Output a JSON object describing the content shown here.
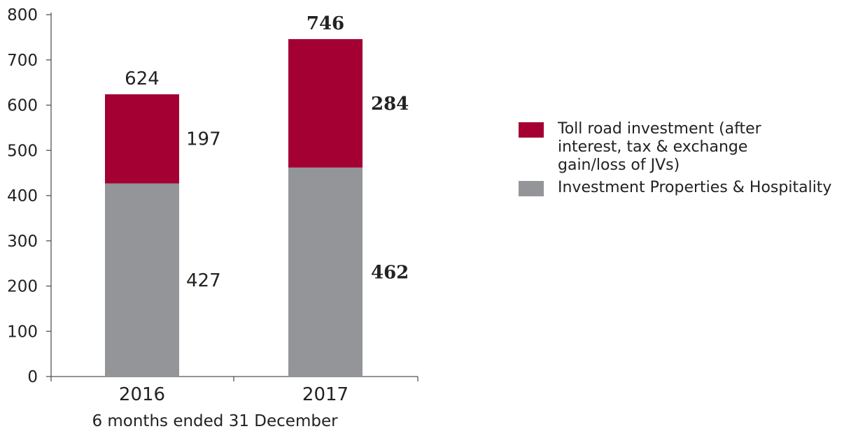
{
  "chart_data": {
    "type": "bar",
    "stacked": true,
    "categories": [
      "2016",
      "2017"
    ],
    "series": [
      {
        "name": "Investment Properties & Hospitality",
        "color": "#939598",
        "values": [
          427,
          462
        ],
        "labels": [
          "427",
          "462"
        ]
      },
      {
        "name": "Toll road investment (after interest, tax & exchange gain/loss of JVs)",
        "color": "#a50034",
        "values": [
          197,
          284
        ],
        "labels": [
          "197",
          "284"
        ]
      }
    ],
    "totals": [
      624,
      746
    ],
    "total_labels": [
      "624",
      "746"
    ],
    "bold_category": "2017",
    "xlabel": "6 months ended 31 December",
    "ylabel": "",
    "ylim": [
      0,
      800
    ],
    "yticks": [
      "0",
      "100",
      "200",
      "300",
      "400",
      "500",
      "600",
      "700",
      "800"
    ],
    "grid": false,
    "legend_position": "right"
  },
  "legend": {
    "items": [
      {
        "label": "Toll road investment (after interest, tax & exchange gain/loss of JVs)",
        "color": "#a50034"
      },
      {
        "label": "Investment Properties & Hospitality",
        "color": "#939598"
      }
    ]
  }
}
